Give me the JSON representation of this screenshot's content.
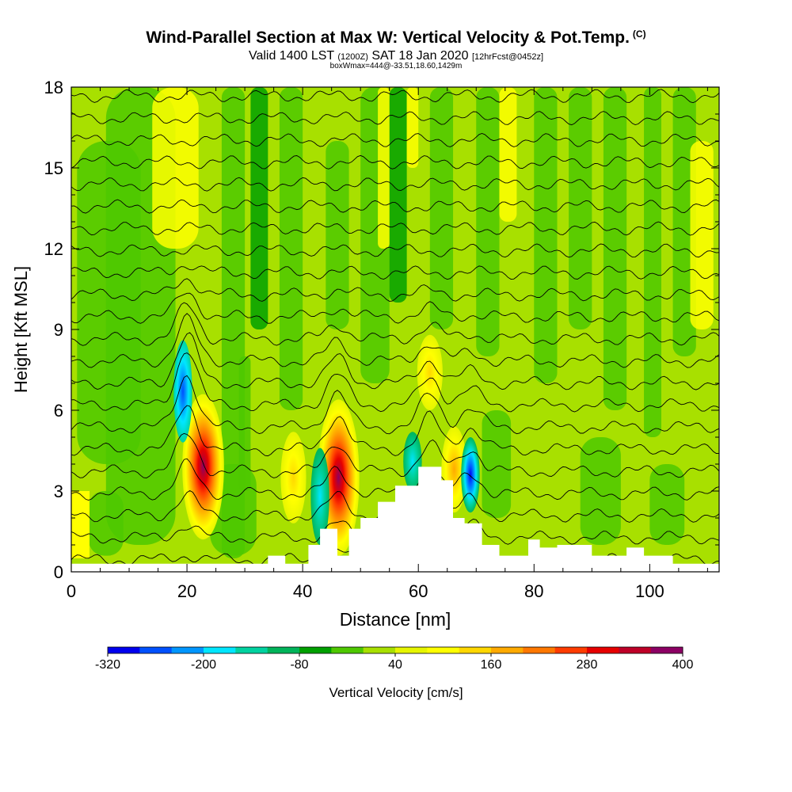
{
  "header": {
    "title": "Wind-Parallel Section at Max W: Vertical Velocity & Pot.Temp.",
    "title_suffix": "(C)",
    "valid_a": "Valid 1400 LST",
    "valid_b": "(1200Z)",
    "valid_c": "SAT 18 Jan 2020",
    "valid_d": "[12hrFcst@0452z]",
    "subtitle": "boxWmax=444@-33.51,18.60,1429m"
  },
  "chart_data": {
    "type": "heatmap",
    "xlabel": "Distance [nm]",
    "ylabel": "Height [Kft MSL]",
    "xlim": [
      0,
      112
    ],
    "ylim": [
      0,
      18
    ],
    "x_ticks": [
      0,
      20,
      40,
      60,
      80,
      100
    ],
    "y_ticks": [
      0,
      3,
      6,
      9,
      12,
      15,
      18
    ],
    "background_value_color": "#a8e000",
    "colorbar": {
      "label": "Vertical Velocity [cm/s]",
      "tick_labels": [
        "-320",
        "-200",
        "-80",
        "40",
        "160",
        "280",
        "400"
      ],
      "colors": [
        "#0000ee",
        "#0050ff",
        "#0096ff",
        "#00e6ff",
        "#00d2a0",
        "#00b45a",
        "#00a000",
        "#4ec800",
        "#a8e000",
        "#e6f500",
        "#ffff00",
        "#ffd700",
        "#ffaa00",
        "#ff7800",
        "#ff3c00",
        "#e60000",
        "#be0028",
        "#8c0064"
      ]
    },
    "updrafts": [
      {
        "x": 22.8,
        "bottom": 1.2,
        "top": 6.6,
        "peak_cms": 400
      },
      {
        "x": 46.2,
        "bottom": 0.6,
        "top": 6.4,
        "peak_cms": 400
      },
      {
        "x": 66.2,
        "bottom": 2.2,
        "top": 5.4,
        "peak_cms": 160
      },
      {
        "x": 62.0,
        "bottom": 6.0,
        "top": 8.8,
        "peak_cms": 100
      },
      {
        "x": 38.4,
        "bottom": 1.8,
        "top": 5.2,
        "peak_cms": 100
      }
    ],
    "downdrafts": [
      {
        "x": 19.3,
        "bottom": 4.8,
        "top": 8.6,
        "peak_cms": -260
      },
      {
        "x": 43.0,
        "bottom": 1.0,
        "top": 4.6,
        "peak_cms": -120
      },
      {
        "x": 69.0,
        "bottom": 2.2,
        "top": 5.0,
        "peak_cms": -320
      },
      {
        "x": 59.0,
        "bottom": 3.0,
        "top": 5.2,
        "peak_cms": -140
      }
    ],
    "terrain": [
      [
        0,
        0.3
      ],
      [
        34,
        0.3
      ],
      [
        34,
        0.6
      ],
      [
        37,
        0.6
      ],
      [
        37,
        0.3
      ],
      [
        41,
        0.3
      ],
      [
        41,
        1.0
      ],
      [
        43,
        1.0
      ],
      [
        43,
        1.6
      ],
      [
        46,
        1.6
      ],
      [
        46,
        0.6
      ],
      [
        48,
        0.6
      ],
      [
        48,
        1.6
      ],
      [
        50,
        1.6
      ],
      [
        50,
        2.0
      ],
      [
        53,
        2.0
      ],
      [
        53,
        2.6
      ],
      [
        56,
        2.6
      ],
      [
        56,
        3.2
      ],
      [
        60,
        3.2
      ],
      [
        60,
        3.9
      ],
      [
        64,
        3.9
      ],
      [
        64,
        3.4
      ],
      [
        66,
        3.4
      ],
      [
        66,
        2.0
      ],
      [
        68,
        2.0
      ],
      [
        68,
        1.8
      ],
      [
        71,
        1.8
      ],
      [
        71,
        1.0
      ],
      [
        74,
        1.0
      ],
      [
        74,
        0.6
      ],
      [
        79,
        0.6
      ],
      [
        79,
        1.2
      ],
      [
        81,
        1.2
      ],
      [
        81,
        0.9
      ],
      [
        84,
        0.9
      ],
      [
        84,
        1.0
      ],
      [
        90,
        1.0
      ],
      [
        90,
        0.6
      ],
      [
        96,
        0.6
      ],
      [
        96,
        0.9
      ],
      [
        99,
        0.9
      ],
      [
        99,
        0.6
      ],
      [
        104,
        0.6
      ],
      [
        104,
        0.3
      ],
      [
        112,
        0.3
      ]
    ]
  }
}
